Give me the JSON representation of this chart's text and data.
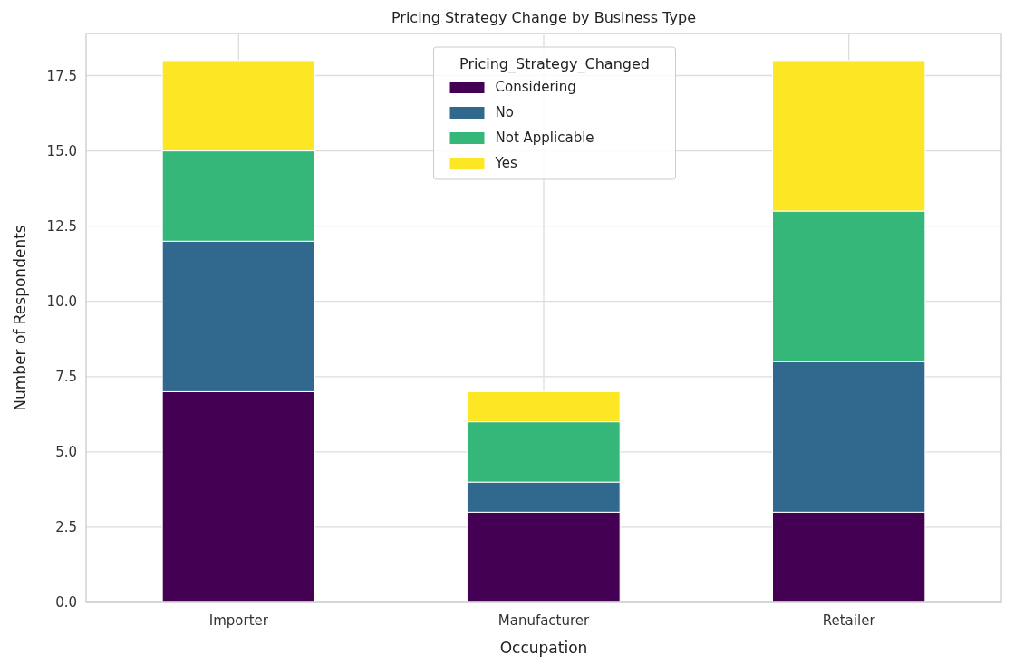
{
  "chart_data": {
    "type": "bar",
    "stacked": true,
    "title": "Pricing Strategy Change by Business Type",
    "xlabel": "Occupation",
    "ylabel": "Number of Respondents",
    "legend_title": "Pricing_Strategy_Changed",
    "legend": "top",
    "grid": true,
    "categories": [
      "Importer",
      "Manufacturer",
      "Retailer"
    ],
    "series": [
      {
        "name": "Considering",
        "color": "#440154",
        "values": [
          7,
          3,
          3
        ]
      },
      {
        "name": "No",
        "color": "#31688e",
        "values": [
          5,
          1,
          5
        ]
      },
      {
        "name": "Not Applicable",
        "color": "#35b779",
        "values": [
          3,
          2,
          5
        ]
      },
      {
        "name": "Yes",
        "color": "#fde725",
        "values": [
          3,
          1,
          5
        ]
      }
    ],
    "ylim": [
      0,
      18.9
    ],
    "yticks": [
      {
        "value": 0,
        "label": "0.0"
      },
      {
        "value": 2.5,
        "label": "2.5"
      },
      {
        "value": 5,
        "label": "5.0"
      },
      {
        "value": 7.5,
        "label": "7.5"
      },
      {
        "value": 10,
        "label": "10.0"
      },
      {
        "value": 12.5,
        "label": "12.5"
      },
      {
        "value": 15,
        "label": "15.0"
      },
      {
        "value": 17.5,
        "label": "17.5"
      }
    ]
  }
}
